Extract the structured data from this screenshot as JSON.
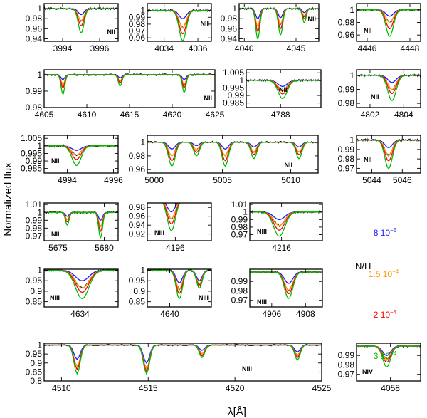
{
  "chart_data": {
    "type": "line",
    "ylabel": "Normalized flux",
    "xlabel": "λ[Å]",
    "legend": {
      "title": "N/H",
      "placement": "right",
      "entries": [
        {
          "mant": "8",
          "exp": "−5",
          "color": "#1a1aff"
        },
        {
          "mant": "1.5",
          "exp": "−4",
          "color": "#ff9900"
        },
        {
          "mant": "2",
          "exp": "−4",
          "color": "#ff0000"
        },
        {
          "mant": "3",
          "exp": "−4",
          "color": "#00bb00"
        }
      ]
    },
    "series_colors": {
      "observed": "#000000"
    },
    "panels": [
      {
        "id": "p1",
        "ion": "NII",
        "xlim": [
          3993.0,
          3997.0
        ],
        "ylim": [
          0.935,
          1.01
        ],
        "xticks": [
          3994,
          3996
        ],
        "ytick_labels": [
          "1",
          "0.98",
          "0.96",
          "0.94"
        ],
        "ytick_values": [
          1.0,
          0.98,
          0.96,
          0.94
        ],
        "lines": [
          {
            "center": 3995.0,
            "width": 0.22,
            "depths": [
              0.012,
              0.024,
              0.034,
              0.048
            ]
          }
        ]
      },
      {
        "id": "p2",
        "ion": "NII",
        "xlim": [
          4033.0,
          4036.8
        ],
        "ylim": [
          0.955,
          1.01
        ],
        "xticks": [
          4034,
          4036
        ],
        "ytick_labels": [
          "1",
          "0.99",
          "0.98",
          "0.97",
          "0.96"
        ],
        "ytick_values": [
          1.0,
          0.99,
          0.98,
          0.97,
          0.96
        ],
        "lines": [
          {
            "center": 4035.1,
            "width": 0.3,
            "depths": [
              0.012,
              0.025,
              0.034,
              0.044
            ]
          }
        ]
      },
      {
        "id": "p3",
        "ion": "NII",
        "xlim": [
          4039.5,
          4047.2
        ],
        "ylim": [
          0.935,
          1.01
        ],
        "xticks": [
          4040,
          4045
        ],
        "ytick_labels": [
          "1",
          "0.98",
          "0.96",
          "0.94"
        ],
        "ytick_values": [
          1.0,
          0.98,
          0.96,
          0.94
        ],
        "lines": [
          {
            "center": 4041.3,
            "width": 0.28,
            "depths": [
              0.02,
              0.035,
              0.045,
              0.06
            ]
          },
          {
            "center": 4043.5,
            "width": 0.3,
            "depths": [
              0.018,
              0.03,
              0.04,
              0.052
            ]
          },
          {
            "center": 4045.8,
            "width": 0.25,
            "depths": [
              0.008,
              0.015,
              0.02,
              0.028
            ]
          }
        ]
      },
      {
        "id": "p4",
        "ion": "NII",
        "xlim": [
          4445.5,
          4448.5
        ],
        "ylim": [
          0.95,
          1.01
        ],
        "xticks": [
          4446,
          4448
        ],
        "ytick_labels": [
          "1",
          "0.98",
          "0.96"
        ],
        "ytick_values": [
          1.0,
          0.98,
          0.96
        ],
        "lines": [
          {
            "center": 4447.05,
            "width": 0.25,
            "depths": [
              0.01,
              0.02,
              0.03,
              0.042
            ]
          }
        ]
      },
      {
        "id": "p5",
        "ion": "NII",
        "xlim": [
          4605.0,
          4625.0
        ],
        "ylim": [
          0.98,
          1.003
        ],
        "xticks": [
          4605,
          4610,
          4615,
          4620,
          4625
        ],
        "ytick_labels": [
          "1",
          "0.99",
          "0.98"
        ],
        "ytick_values": [
          1.0,
          0.99,
          0.98
        ],
        "lines": [
          {
            "center": 4607.2,
            "width": 0.3,
            "depths": [
              0.003,
              0.006,
              0.008,
              0.012
            ]
          },
          {
            "center": 4613.9,
            "width": 0.3,
            "depths": [
              0.002,
              0.004,
              0.005,
              0.007
            ]
          },
          {
            "center": 4621.4,
            "width": 0.3,
            "depths": [
              0.003,
              0.006,
              0.008,
              0.011
            ]
          }
        ]
      },
      {
        "id": "p6",
        "ion": "NII",
        "xlim": [
          4786.3,
          4790.0
        ],
        "ylim": [
          0.982,
          1.007
        ],
        "xticks": [
          4788
        ],
        "ytick_labels": [
          "1.005",
          "1",
          "0.995",
          "0.99",
          "0.985"
        ],
        "ytick_values": [
          1.005,
          1.0,
          0.995,
          0.99,
          0.985
        ],
        "lines": [
          {
            "center": 4788.1,
            "width": 0.32,
            "depths": [
              0.004,
              0.007,
              0.009,
              0.012
            ]
          }
        ]
      },
      {
        "id": "p7",
        "ion": "NII",
        "xlim": [
          4801.2,
          4805.0
        ],
        "ylim": [
          0.977,
          1.004
        ],
        "xticks": [
          4802,
          4804
        ],
        "ytick_labels": [
          "1",
          "0.99",
          "0.98"
        ],
        "ytick_values": [
          1.0,
          0.99,
          0.98
        ],
        "lines": [
          {
            "center": 4803.3,
            "width": 0.35,
            "depths": [
              0.005,
              0.01,
              0.013,
              0.018
            ]
          }
        ]
      },
      {
        "id": "p8",
        "ion": "NII",
        "xlim": [
          4993.0,
          4996.2
        ],
        "ylim": [
          0.982,
          1.007
        ],
        "xticks": [
          4994,
          4996
        ],
        "ytick_labels": [
          "1.005",
          "1",
          "0.995",
          "0.99",
          "0.985"
        ],
        "ytick_values": [
          1.005,
          1.0,
          0.995,
          0.99,
          0.985
        ],
        "lines": [
          {
            "center": 4994.4,
            "width": 0.28,
            "depths": [
              0.003,
              0.006,
              0.009,
              0.013
            ]
          }
        ]
      },
      {
        "id": "p9",
        "ion": "NII",
        "xlim": [
          4999.5,
          5012.0
        ],
        "ylim": [
          0.955,
          1.01
        ],
        "xticks": [
          5000,
          5005,
          5010
        ],
        "ytick_labels": [
          "1",
          "0.98",
          "0.96"
        ],
        "ytick_values": [
          1.0,
          0.98,
          0.96
        ],
        "lines": [
          {
            "center": 5001.3,
            "width": 0.35,
            "depths": [
              0.01,
              0.02,
              0.027,
              0.035
            ]
          },
          {
            "center": 5003.1,
            "width": 0.3,
            "depths": [
              0.005,
              0.011,
              0.015,
              0.02
            ]
          },
          {
            "center": 5005.2,
            "width": 0.32,
            "depths": [
              0.01,
              0.02,
              0.027,
              0.035
            ]
          },
          {
            "center": 5007.3,
            "width": 0.3,
            "depths": [
              0.007,
              0.014,
              0.018,
              0.024
            ]
          },
          {
            "center": 5010.6,
            "width": 0.3,
            "depths": [
              0.007,
              0.014,
              0.018,
              0.024
            ]
          }
        ]
      },
      {
        "id": "p10",
        "ion": "NII",
        "xlim": [
          5043.0,
          5047.2
        ],
        "ylim": [
          0.965,
          1.005
        ],
        "xticks": [
          5044,
          5046
        ],
        "ytick_labels": [
          "1",
          "0.99",
          "0.98",
          "0.97"
        ],
        "ytick_values": [
          1.0,
          0.99,
          0.98,
          0.97
        ],
        "lines": [
          {
            "center": 5045.1,
            "width": 0.35,
            "depths": [
              0.008,
              0.016,
              0.022,
              0.03
            ]
          }
        ]
      },
      {
        "id": "p11",
        "ion": "NII",
        "xlim": [
          5673.5,
          5681.5
        ],
        "ylim": [
          0.964,
          1.012
        ],
        "xticks": [
          5675,
          5680
        ],
        "ytick_labels": [
          "1.01",
          "1",
          "0.99",
          "0.98",
          "0.97"
        ],
        "ytick_values": [
          1.01,
          1.0,
          0.99,
          0.98,
          0.97
        ],
        "lines": [
          {
            "center": 5676.0,
            "width": 0.28,
            "depths": [
              0.005,
              0.009,
              0.012,
              0.016
            ]
          },
          {
            "center": 5679.6,
            "width": 0.3,
            "depths": [
              0.01,
              0.018,
              0.024,
              0.032
            ]
          }
        ]
      },
      {
        "id": "p12",
        "ion": "NIII",
        "xlim": [
          4194.6,
          4197.8
        ],
        "ylim": [
          0.905,
          0.99
        ],
        "xticks": [
          4196
        ],
        "ytick_labels": [
          "0.98",
          "0.96",
          "0.94",
          "0.92"
        ],
        "ytick_values": [
          0.98,
          0.96,
          0.94,
          0.92
        ],
        "lines": [
          {
            "center": 4195.8,
            "width": 0.3,
            "depths": [
              0.03,
              0.045,
              0.057,
              0.072
            ]
          }
        ]
      },
      {
        "id": "p13",
        "ion": "NIII",
        "xlim": [
          4214.6,
          4217.8
        ],
        "ylim": [
          0.962,
          1.012
        ],
        "xticks": [
          4216
        ],
        "ytick_labels": [
          "1.01",
          "1",
          "0.99",
          "0.98",
          "0.97"
        ],
        "ytick_values": [
          1.01,
          1.0,
          0.99,
          0.98,
          0.97
        ],
        "lines": [
          {
            "center": 4215.9,
            "width": 0.35,
            "depths": [
              0.01,
              0.018,
              0.024,
              0.032
            ]
          }
        ]
      },
      {
        "id": "p14",
        "ion": "NIII",
        "xlim": [
          4632.3,
          4635.8
        ],
        "ylim": [
          0.825,
          1.005
        ],
        "xticks": [
          4634
        ],
        "ytick_labels": [
          "1",
          "0.95",
          "0.9",
          "0.85"
        ],
        "ytick_values": [
          1.0,
          0.95,
          0.9,
          0.85
        ],
        "lines": [
          {
            "center": 4634.1,
            "width": 0.45,
            "depths": [
              0.05,
              0.085,
              0.105,
              0.135
            ]
          }
        ]
      },
      {
        "id": "p15",
        "ion": "NIII",
        "xlim": [
          4638.6,
          4642.6
        ],
        "ylim": [
          0.825,
          1.005
        ],
        "xticks": [
          4640
        ],
        "ytick_labels": [
          "1",
          "0.95",
          "0.9",
          "0.85"
        ],
        "ytick_values": [
          1.0,
          0.95,
          0.9,
          0.85
        ],
        "lines": [
          {
            "center": 4640.6,
            "width": 0.28,
            "depths": [
              0.06,
              0.09,
              0.11,
              0.135
            ]
          },
          {
            "center": 4641.85,
            "width": 0.25,
            "depths": [
              0.05,
              0.065,
              0.075,
              0.085
            ]
          }
        ]
      },
      {
        "id": "p16",
        "ion": "NIII",
        "xlim": [
          4904.7,
          4909.0
        ],
        "ylim": [
          0.963,
          1.003
        ],
        "xticks": [
          4906,
          4908
        ],
        "ytick_labels": [
          "0.99",
          "0.98",
          "0.97"
        ],
        "ytick_values": [
          0.99,
          0.98,
          0.97
        ],
        "lines": [
          {
            "center": 4907.0,
            "width": 0.35,
            "depths": [
              0.012,
              0.019,
              0.023,
              0.028
            ]
          }
        ]
      },
      {
        "id": "p17",
        "ion": "NIII",
        "xlim": [
          4509.0,
          4525.0
        ],
        "ylim": [
          0.8,
          1.01
        ],
        "xticks": [
          4510,
          4515,
          4520,
          4525
        ],
        "ytick_labels": [
          "1",
          "0.95",
          "0.9",
          "0.85",
          "0.8"
        ],
        "ytick_values": [
          1.0,
          0.95,
          0.9,
          0.85,
          0.8
        ],
        "lines": [
          {
            "center": 4510.9,
            "width": 0.25,
            "depths": [
              0.08,
              0.12,
              0.135,
              0.16
            ]
          },
          {
            "center": 4514.9,
            "width": 0.25,
            "depths": [
              0.1,
              0.13,
              0.145,
              0.16
            ]
          },
          {
            "center": 4518.1,
            "width": 0.22,
            "depths": [
              0.03,
              0.05,
              0.06,
              0.07
            ]
          },
          {
            "center": 4523.6,
            "width": 0.22,
            "depths": [
              0.04,
              0.06,
              0.07,
              0.085
            ]
          }
        ]
      },
      {
        "id": "p18",
        "ion": "NIV",
        "xlim": [
          4056.2,
          4059.6
        ],
        "ylim": [
          0.963,
          1.003
        ],
        "xticks": [
          4058
        ],
        "ytick_labels": [
          "0.99",
          "0.98",
          "0.97"
        ],
        "ytick_values": [
          0.99,
          0.98,
          0.97
        ],
        "lines": [
          {
            "center": 4057.8,
            "width": 0.3,
            "depths": [
              0.01,
              0.014,
              0.017,
              0.022
            ]
          }
        ]
      }
    ]
  }
}
